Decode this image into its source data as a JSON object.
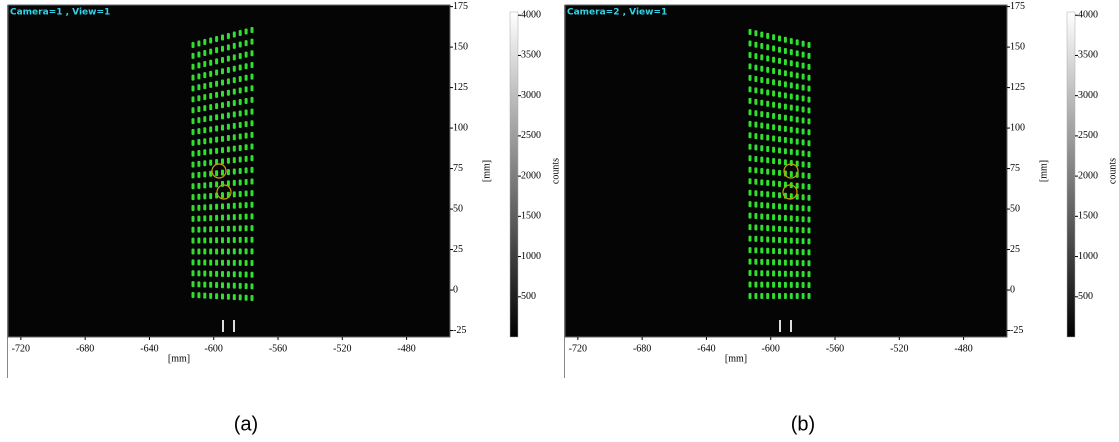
{
  "panels": [
    {
      "label": "Camera=1 , View=1",
      "caption": "(a)",
      "x_label": "[mm]",
      "y_label": "[mm]",
      "colorbar_label": "counts",
      "xlim": [
        -728,
        -453
      ],
      "xticks": [
        -720,
        -680,
        -640,
        -600,
        -560,
        -520,
        -480
      ],
      "ylim": [
        -29,
        176
      ],
      "yticks": [
        -25,
        0,
        25,
        50,
        75,
        100,
        125,
        150,
        175
      ],
      "clim": [
        0,
        4040
      ],
      "cticks": [
        500,
        1000,
        1500,
        2000,
        2500,
        3000,
        3500,
        4000
      ]
    },
    {
      "label": "Camera=2 , View=1",
      "caption": "(b)",
      "x_label": "[mm]",
      "y_label": "[mm]",
      "colorbar_label": "counts",
      "xlim": [
        -728,
        -453
      ],
      "xticks": [
        -720,
        -680,
        -640,
        -600,
        -560,
        -520,
        -480
      ],
      "ylim": [
        -29,
        176
      ],
      "yticks": [
        -25,
        0,
        25,
        50,
        75,
        100,
        125,
        150,
        175
      ],
      "clim": [
        0,
        4040
      ],
      "cticks": [
        500,
        1000,
        1500,
        2000,
        2500,
        3000,
        3500,
        4000
      ]
    }
  ]
}
